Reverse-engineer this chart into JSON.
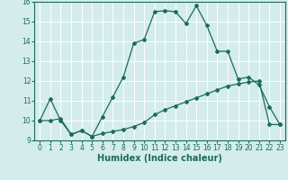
{
  "xlabel": "Humidex (Indice chaleur)",
  "bg_color": "#d4ecec",
  "grid_color": "#ffffff",
  "line_color": "#1a6b5e",
  "upper_x": [
    0,
    1,
    2,
    3,
    4,
    5,
    6,
    7,
    8,
    9,
    10,
    11,
    12,
    13,
    14,
    15,
    16,
    17,
    18,
    19,
    20,
    21,
    22,
    23
  ],
  "upper_y": [
    10.0,
    11.1,
    10.0,
    9.3,
    9.5,
    9.2,
    10.2,
    11.2,
    12.2,
    13.9,
    14.1,
    15.5,
    15.55,
    15.5,
    14.9,
    15.8,
    14.8,
    13.5,
    13.5,
    12.1,
    12.2,
    11.8,
    10.7,
    9.8
  ],
  "lower_x": [
    0,
    1,
    2,
    3,
    4,
    5,
    6,
    7,
    8,
    9,
    10,
    11,
    12,
    13,
    14,
    15,
    16,
    17,
    18,
    19,
    20,
    21,
    22,
    23
  ],
  "lower_y": [
    10.0,
    10.0,
    10.1,
    9.3,
    9.5,
    9.2,
    9.35,
    9.45,
    9.55,
    9.7,
    9.9,
    10.3,
    10.55,
    10.75,
    10.95,
    11.15,
    11.35,
    11.55,
    11.75,
    11.85,
    11.95,
    12.0,
    9.8,
    9.8
  ],
  "xlim": [
    -0.5,
    23.5
  ],
  "ylim": [
    9.0,
    16.0
  ],
  "xticks": [
    0,
    1,
    2,
    3,
    4,
    5,
    6,
    7,
    8,
    9,
    10,
    11,
    12,
    13,
    14,
    15,
    16,
    17,
    18,
    19,
    20,
    21,
    22,
    23
  ],
  "yticks": [
    9,
    10,
    11,
    12,
    13,
    14,
    15,
    16
  ],
  "label_fontsize": 7,
  "tick_fontsize": 5.5
}
